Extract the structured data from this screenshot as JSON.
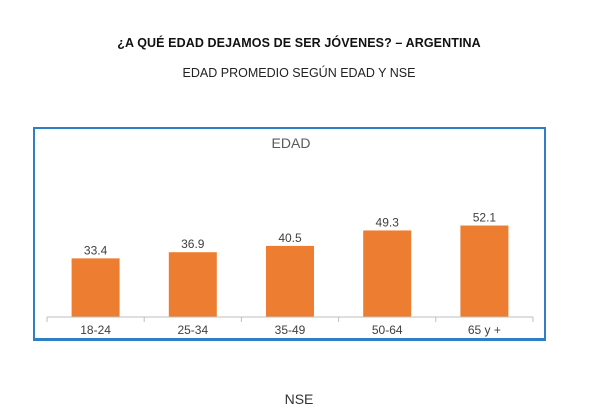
{
  "header": {
    "title": "¿A QUÉ EDAD DEJAMOS DE SER JÓVENES? – ARGENTINA",
    "subtitle": "EDAD PROMEDIO SEGÚN EDAD Y NSE"
  },
  "footer": {
    "label": "NSE"
  },
  "colors": {
    "bar": "#ed7d31",
    "frame": "#2e7fc4",
    "axis": "#bfbfbf",
    "label": "#404040"
  },
  "chart_data": {
    "type": "bar",
    "title": "EDAD",
    "categories": [
      "18-24",
      "25-34",
      "35-49",
      "50-64",
      "65 y +"
    ],
    "values": [
      33.4,
      36.9,
      40.5,
      49.3,
      52.1
    ],
    "data_labels": [
      "33.4",
      "36.9",
      "40.5",
      "49.3",
      "52.1"
    ],
    "xlabel": "",
    "ylabel": "",
    "ylim": [
      0,
      90
    ],
    "grid": false,
    "legend": "none"
  }
}
